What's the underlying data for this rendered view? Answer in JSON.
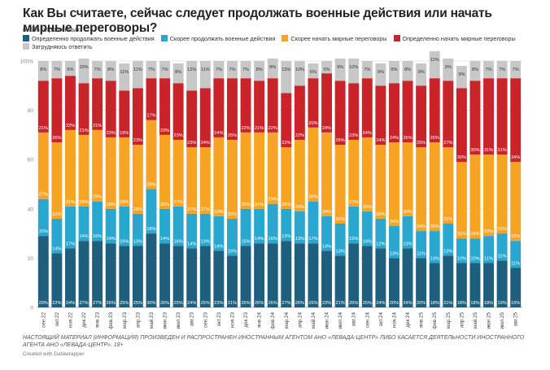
{
  "title": "Как Вы считаете, сейчас следует продолжать военные действия или начать мирные переговоры?",
  "subtitle": "в %% опрошенных",
  "note": "НАСТОЯЩИЙ МАТЕРИАЛ (ИНФОРМАЦИЯ) ПРОИЗВЕДЕН И РАСПРОСТРАНЕН ИНОСТРАННЫМ АГЕНТОМ АНО «ЛЕВАДА-ЦЕНТР» ЛИБО КАСАЕТСЯ ДЕЯТЕЛЬНОСТИ ИНОСТРАННОГО АГЕНТА АНО «ЛЕВАДА-ЦЕНТР». 18+",
  "credit": "Created with Datawrapper",
  "chart_data": {
    "type": "bar",
    "stacked": true,
    "percent_labels": true,
    "ylim": [
      0,
      100
    ],
    "yticks": [
      "0",
      "20",
      "40",
      "60",
      "80",
      "100%"
    ],
    "grid": true,
    "legend_placement": "top",
    "categories": [
      "сен.22",
      "окт.22",
      "ноя.22",
      "дек.22",
      "янв.23",
      "фев.23",
      "мар.23",
      "апр.23",
      "май.23",
      "июн.23",
      "июл.23",
      "авг.23",
      "сен.23",
      "окт.23",
      "ноя.23",
      "дек.23",
      "янв.24",
      "фев.24",
      "мар.24",
      "апр.24",
      "май.24",
      "июн.24",
      "июл.24",
      "авг.24",
      "сен.24",
      "окт.24",
      "ноя.24",
      "дек.24",
      "янв.25",
      "фев.25",
      "мар.25",
      "апр.25",
      "май.25",
      "июн.25",
      "июл.25",
      "авг.25"
    ],
    "series": [
      {
        "name": "Определенно продолжать военные действия",
        "color": "#1d5f7d",
        "values": [
          29,
          22,
          24,
          27,
          27,
          26,
          25,
          25,
          30,
          26,
          25,
          24,
          25,
          23,
          21,
          25,
          26,
          26,
          27,
          26,
          26,
          23,
          21,
          26,
          25,
          24,
          20,
          24,
          20,
          18,
          21,
          18,
          18,
          18,
          19,
          16
        ]
      },
      {
        "name": "Скорее продолжать военные действия",
        "color": "#2aa7cf",
        "values": [
          15,
          14,
          17,
          14,
          16,
          14,
          16,
          13,
          18,
          14,
          16,
          14,
          13,
          14,
          15,
          15,
          14,
          16,
          13,
          13,
          17,
          14,
          13,
          15,
          14,
          12,
          13,
          13,
          11,
          13,
          13,
          10,
          10,
          11,
          11,
          11
        ]
      },
      {
        "name": "Скорее начать мирные переговоры",
        "color": "#f7a425",
        "values": [
          27,
          31,
          31,
          29,
          29,
          29,
          28,
          28,
          28,
          30,
          27,
          27,
          27,
          32,
          32,
          31,
          31,
          29,
          25,
          29,
          30,
          34,
          32,
          27,
          30,
          30,
          34,
          30,
          34,
          36,
          31,
          31,
          34,
          33,
          32,
          32
        ]
      },
      {
        "name": "Определенно начать мирные переговоры",
        "color": "#c8242a",
        "values": [
          21,
          26,
          22,
          21,
          21,
          23,
          19,
          23,
          17,
          23,
          23,
          23,
          24,
          24,
          25,
          22,
          21,
          22,
          22,
          22,
          20,
          24,
          26,
          23,
          24,
          24,
          24,
          25,
          25,
          26,
          27,
          30,
          30,
          31,
          31,
          34
        ]
      },
      {
        "name": "Затрудняюсь ответить",
        "color": "#c7c7c7",
        "values": [
          8,
          7,
          6,
          10,
          7,
          8,
          11,
          11,
          7,
          7,
          8,
          12,
          11,
          7,
          7,
          7,
          8,
          8,
          13,
          10,
          6,
          5,
          9,
          10,
          7,
          9,
          9,
          8,
          9,
          11,
          9,
          9,
          8,
          7,
          7,
          7
        ]
      }
    ]
  }
}
